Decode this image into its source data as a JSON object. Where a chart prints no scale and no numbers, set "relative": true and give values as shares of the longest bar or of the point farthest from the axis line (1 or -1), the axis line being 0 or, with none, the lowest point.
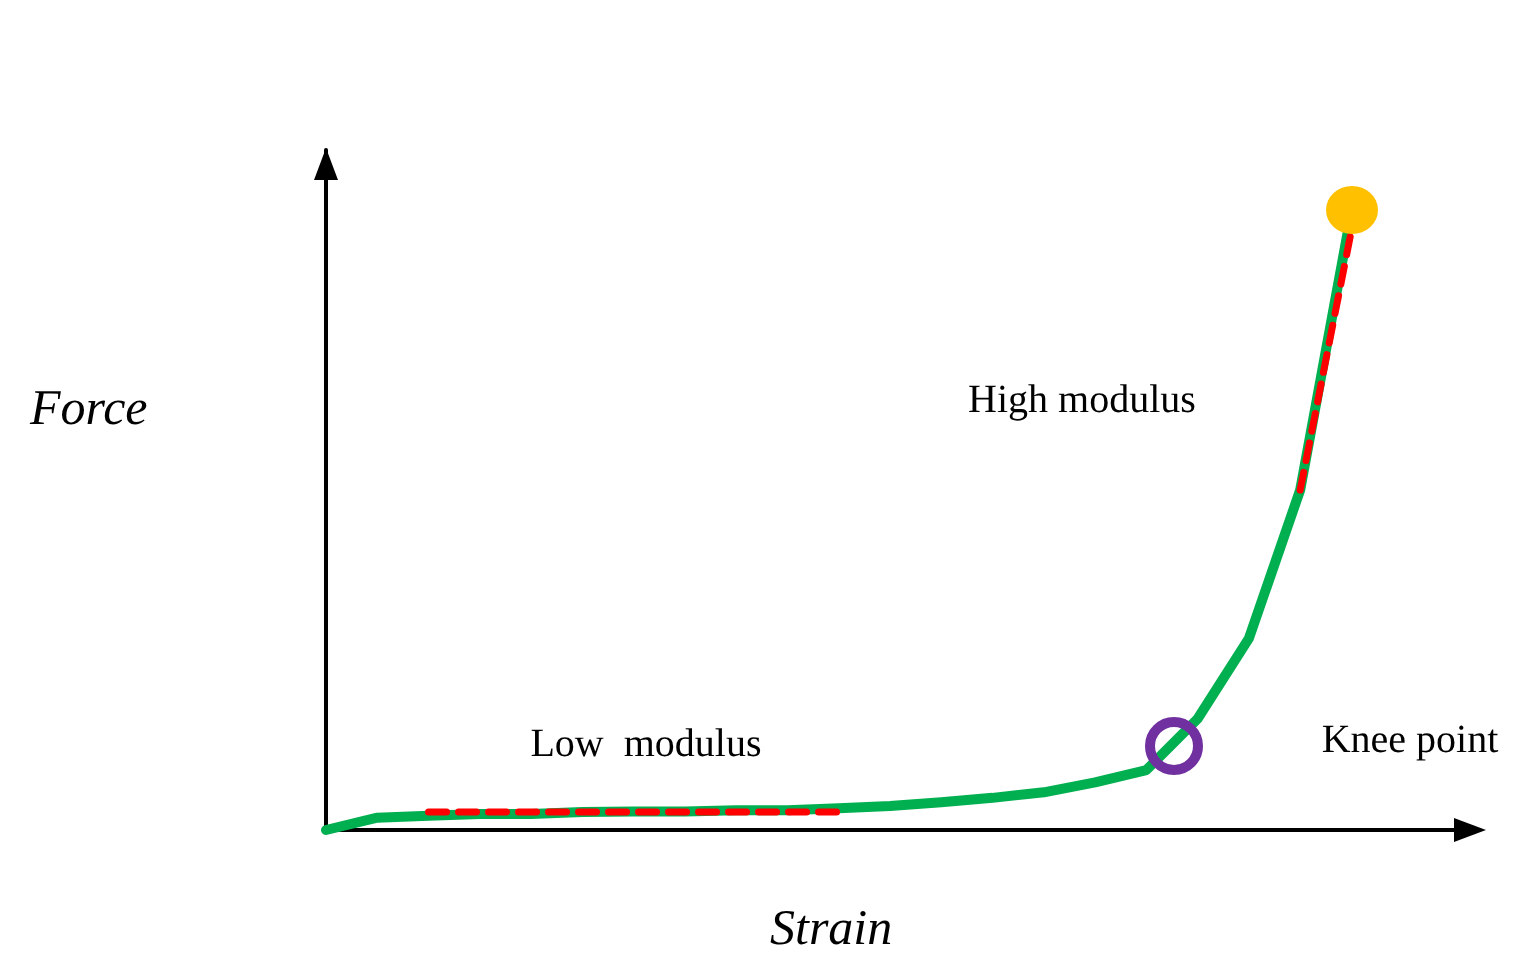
{
  "chart_data": {
    "type": "line",
    "relative": true,
    "xlabel": "Strain",
    "ylabel": "Force",
    "categories": [
      null,
      null,
      null,
      null,
      null,
      null,
      null,
      null,
      null,
      null,
      null,
      null,
      null,
      null,
      null,
      null,
      null,
      null,
      null,
      null,
      null,
      null,
      null
    ],
    "series": [
      {
        "type": "line",
        "color": "#00b050",
        "values": [
          0,
          0.02,
          0.023,
          0.026,
          0.026,
          0.029,
          0.03,
          0.03,
          0.032,
          0.032,
          0.035,
          0.039,
          0.045,
          0.052,
          0.061,
          0.077,
          0.097,
          0.18,
          0.31,
          0.55,
          1,
          null,
          null
        ]
      },
      {
        "type": "line",
        "color": "#ff0000",
        "line_style": "dashed",
        "values": [
          null,
          null,
          0.029,
          0.029,
          0.029,
          0.029,
          0.029,
          0.029,
          0.029,
          0.029,
          0.029,
          null,
          null,
          null,
          null,
          null,
          null,
          null,
          null,
          null,
          null,
          null,
          null
        ]
      },
      {
        "type": "line",
        "color": "#ff0000",
        "line_style": "dashed",
        "values": [
          null,
          null,
          null,
          null,
          null,
          null,
          null,
          null,
          null,
          null,
          null,
          null,
          null,
          null,
          null,
          null,
          null,
          null,
          null,
          0.55,
          0.97,
          null,
          null
        ]
      }
    ],
    "annotations": [
      "High modulus",
      "Low  modulus",
      "Knee point"
    ],
    "marker": "none",
    "grid": false
  }
}
